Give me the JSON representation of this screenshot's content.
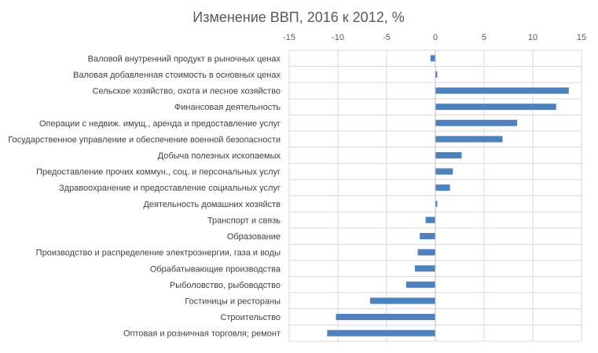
{
  "chart_data": {
    "type": "bar",
    "orientation": "horizontal",
    "title": "Изменение ВВП, 2016 к 2012, %",
    "xlim": [
      -15,
      15
    ],
    "x_ticks": [
      -15,
      -10,
      -5,
      0,
      5,
      10,
      15
    ],
    "x_axis_position": "top",
    "grid": true,
    "legend": "none",
    "bar_color": "#4f81bd",
    "categories": [
      "Валовой внутренний продукт в рыночных ценах",
      "Валовая добавленная стоимость  в основных ценах",
      "Сельское хозяйство, охота и лесное хозяйство",
      "Финансовая деятельность",
      "Операции с недвиж. имущ., аренда и предоставление услуг",
      "Государственное управление и обеспечение военной безопасности",
      "Добыча полезных ископаемых",
      "Предоставление прочих коммун., соц. и персональных услуг",
      "Здравоохранение и предоставление социальных услуг",
      "Деятельность домашних хозяйств",
      "Транспорт и связь",
      "Образование",
      "Производство и распределение электроэнергии, газа и воды",
      "Обрабатывающие производства",
      "Рыболовство, рыбоводство",
      "Гостиницы и рестораны",
      "Строительство",
      "Оптовая и розничная торговля; ремонт"
    ],
    "values": [
      -0.5,
      0.2,
      13.7,
      12.4,
      8.4,
      6.9,
      2.7,
      1.8,
      1.5,
      0.2,
      -1.0,
      -1.6,
      -1.8,
      -2.1,
      -3.0,
      -6.7,
      -10.2,
      -11.1
    ]
  }
}
